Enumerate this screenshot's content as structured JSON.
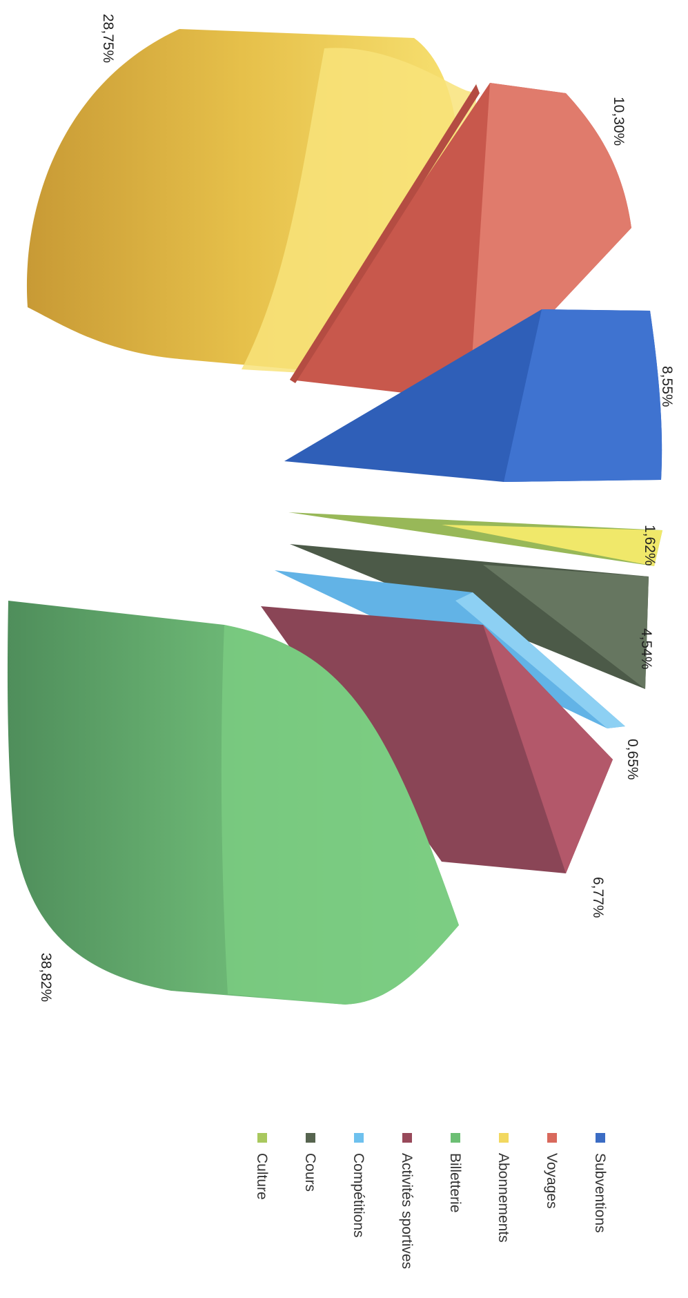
{
  "chart_data": {
    "type": "pie",
    "variant": "3d-exploded",
    "orientation": "rotated-90-clockwise",
    "title": "",
    "series": [
      {
        "name": "Subventions",
        "value": 8.55,
        "label": "8,55%",
        "color": "#3b6cc4"
      },
      {
        "name": "Voyages",
        "value": 10.3,
        "label": "10,30%",
        "color": "#d9695c"
      },
      {
        "name": "Abonnements",
        "value": 28.75,
        "label": "28,75%",
        "color": "#f2d860"
      },
      {
        "name": "Billetterie",
        "value": 38.82,
        "label": "38,82%",
        "color": "#6cbf74"
      },
      {
        "name": "Activités sportives",
        "value": 6.77,
        "label": "6,77%",
        "color": "#98495a"
      },
      {
        "name": "Compétitions",
        "value": 0.65,
        "label": "0,65%",
        "color": "#6ec1ee"
      },
      {
        "name": "Cours",
        "value": 4.54,
        "label": "4,54%",
        "color": "#56644f"
      },
      {
        "name": "Culture",
        "value": 1.62,
        "label": "1,62%",
        "color": "#a9c85e"
      }
    ],
    "legend": {
      "placement": "bottom"
    }
  }
}
